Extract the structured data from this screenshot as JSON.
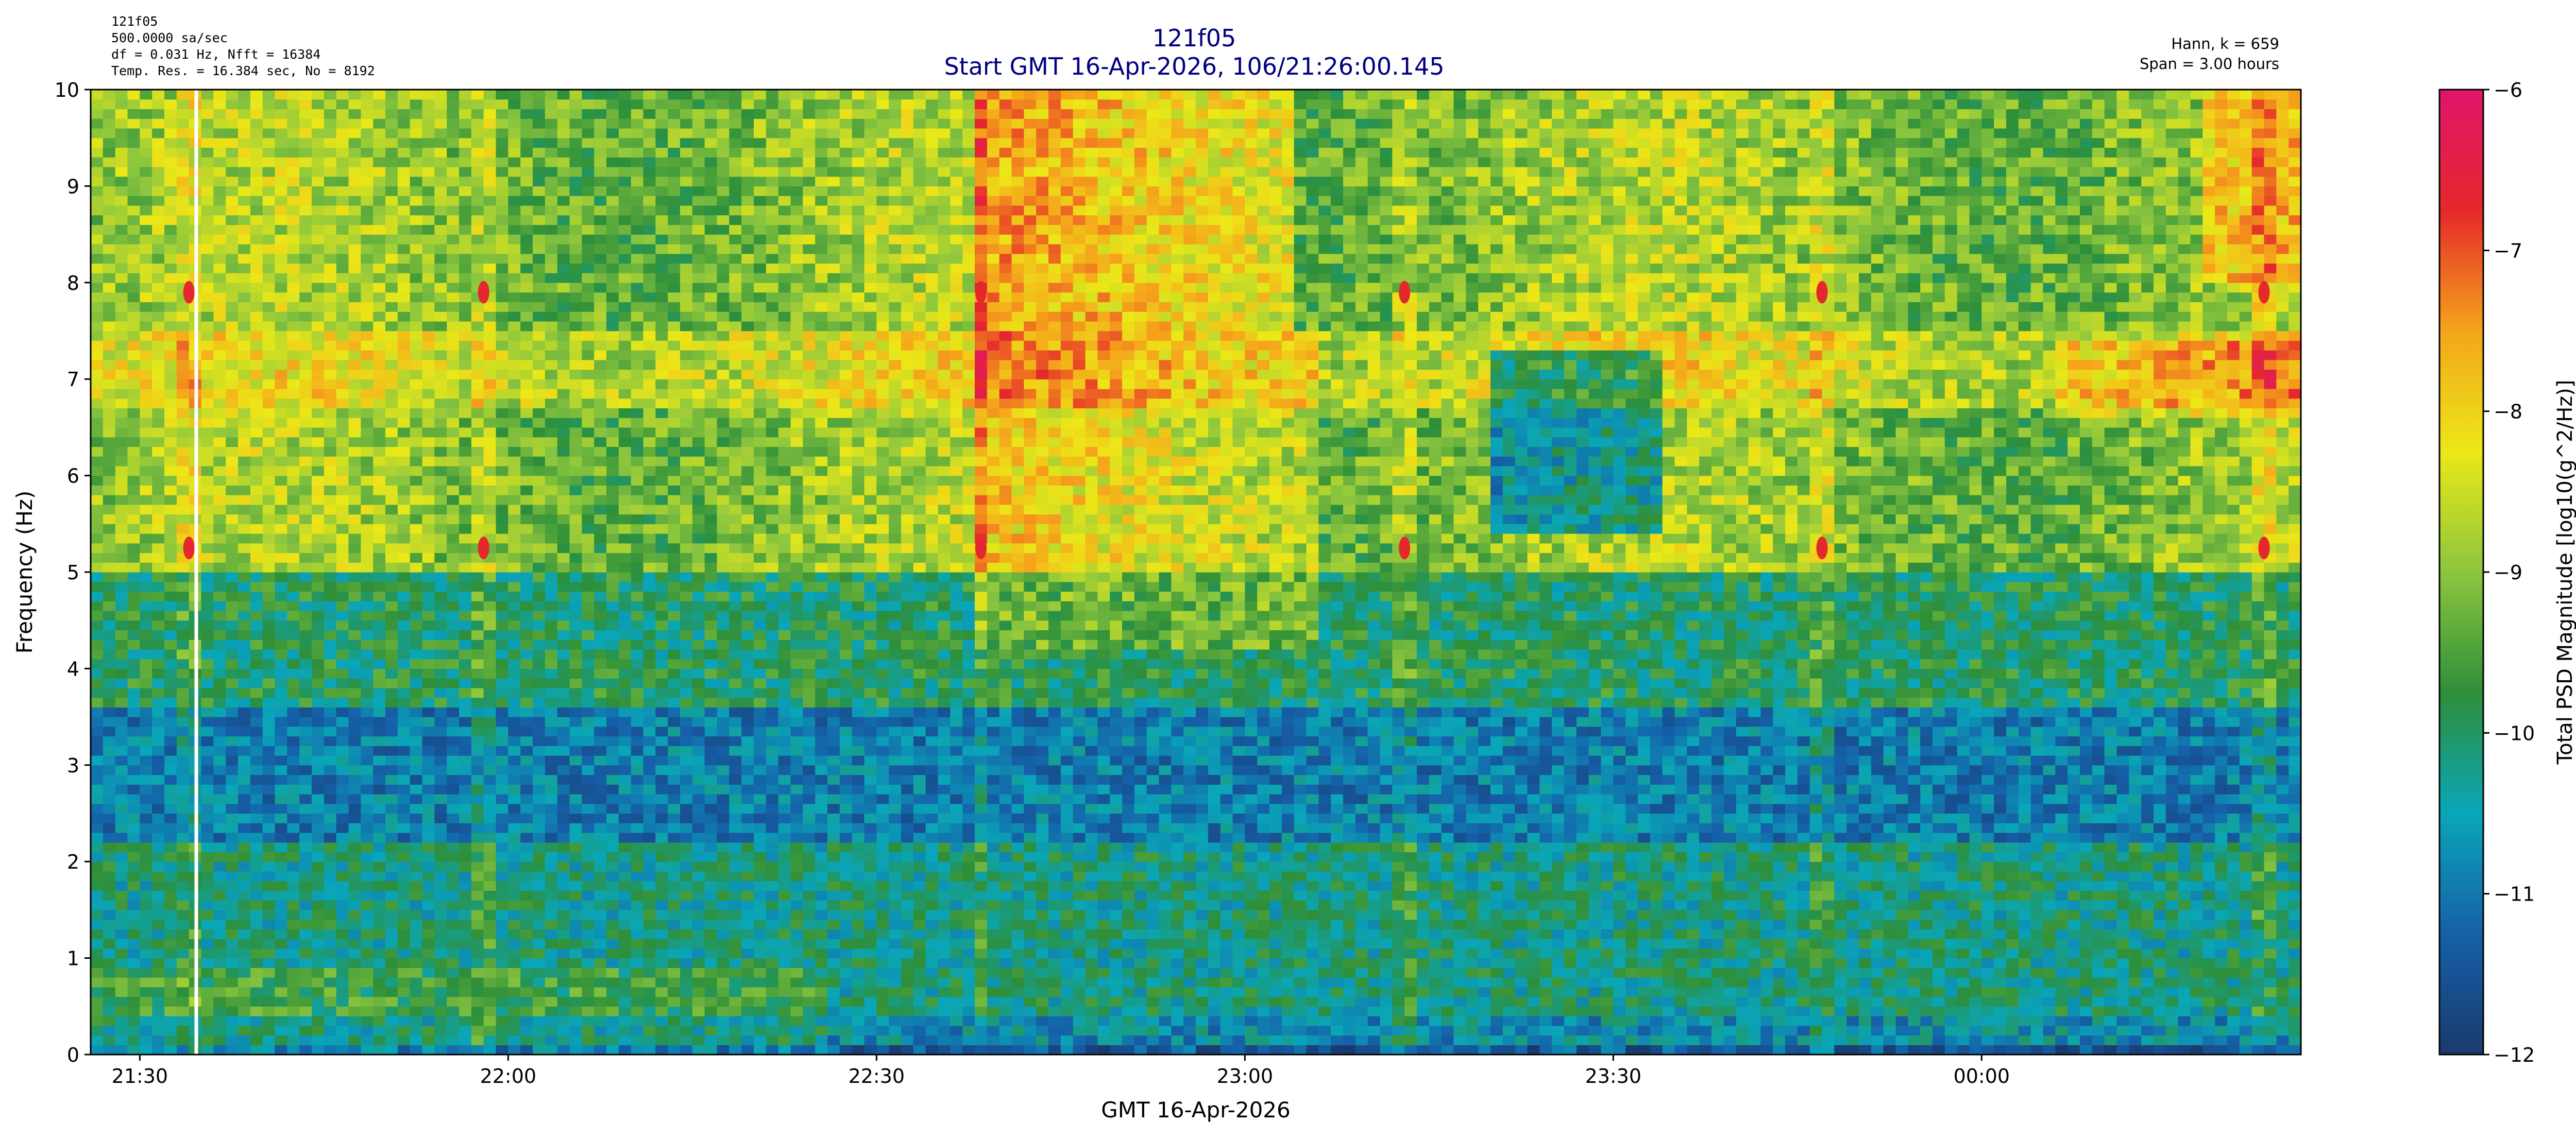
{
  "chart_data": {
    "type": "heatmap",
    "title": "121f05",
    "subtitle": "Start GMT 16-Apr-2026, 106/21:26:00.145",
    "info_left": [
      "121f05",
      "500.0000 sa/sec",
      "df = 0.031 Hz,  Nfft = 16384",
      "Temp. Res. = 16.384 sec, No = 8192"
    ],
    "info_right": [
      "Hann, k = 659",
      "Span = 3.00 hours"
    ],
    "xlabel": "GMT 16-Apr-2026",
    "ylabel": "Frequency (Hz)",
    "colorbar_label": "Total PSD Magnitude [log10(g^2/Hz)]",
    "x_start": "21:26:00",
    "span_hours": 3.0,
    "x_ticks": [
      {
        "label": "21:30",
        "minutes": 4
      },
      {
        "label": "22:00",
        "minutes": 34
      },
      {
        "label": "22:30",
        "minutes": 64
      },
      {
        "label": "23:00",
        "minutes": 94
      },
      {
        "label": "23:30",
        "minutes": 124
      },
      {
        "label": "00:00",
        "minutes": 154
      }
    ],
    "ylim": [
      0,
      10
    ],
    "y_ticks": [
      "0",
      "1",
      "2",
      "3",
      "4",
      "5",
      "6",
      "7",
      "8",
      "9",
      "10"
    ],
    "clim": [
      -12,
      -6
    ],
    "colorbar_ticks": [
      "−12",
      "−11",
      "−10",
      "−9",
      "−8",
      "−7",
      "−6"
    ],
    "colormap": [
      "#1a3a6e",
      "#1560a8",
      "#0aa6b8",
      "#2e8f3a",
      "#8cc63e",
      "#ebe818",
      "#f5a41b",
      "#e5282b",
      "#e0156b"
    ],
    "grid": false,
    "approximate_features": {
      "spike_minutes": [
        8,
        32,
        72.5,
        107,
        141,
        177
      ],
      "spike_freq_hz": [
        7.9,
        5.25
      ],
      "data_gap_minutes": 8.6
    }
  }
}
